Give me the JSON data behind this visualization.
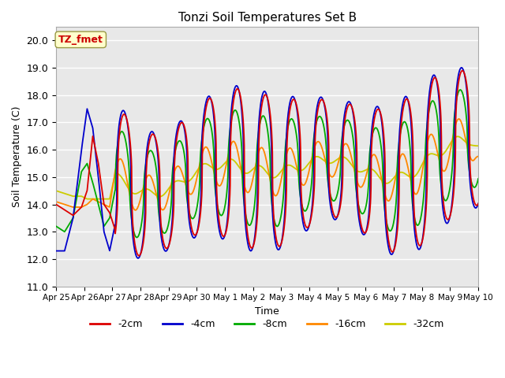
{
  "title": "Tonzi Soil Temperatures Set B",
  "xlabel": "Time",
  "ylabel": "Soil Temperature (C)",
  "ylim": [
    11.0,
    20.5
  ],
  "yticks": [
    11.0,
    12.0,
    13.0,
    14.0,
    15.0,
    16.0,
    17.0,
    18.0,
    19.0,
    20.0
  ],
  "annotation_text": "TZ_fmet",
  "annotation_color": "#cc0000",
  "annotation_bg": "#ffffcc",
  "plot_bg": "#e8e8e8",
  "series_colors": {
    "-2cm": "#dd0000",
    "-4cm": "#0000cc",
    "-8cm": "#00aa00",
    "-16cm": "#ff8800",
    "-32cm": "#cccc00"
  },
  "line_width": 1.3,
  "xtick_labels": [
    "Apr 25",
    "Apr 26",
    "Apr 27",
    "Apr 28",
    "Apr 29",
    "Apr 30",
    "May 1",
    "May 2",
    "May 3",
    "May 4",
    "May 5",
    "May 6",
    "May 7",
    "May 8",
    "May 9",
    "May 10"
  ],
  "n_ticks": 16
}
